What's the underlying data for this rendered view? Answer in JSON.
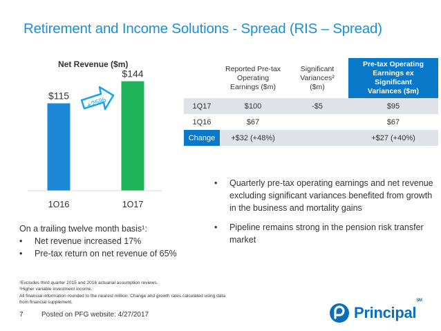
{
  "title": "Retirement and Income Solutions - Spread (RIS – Spread)",
  "chart_title": "Net Revenue ($m)",
  "chart_data": {
    "type": "bar",
    "title": "Net Revenue ($m)",
    "categories": [
      "1Q16",
      "1Q17"
    ],
    "values": [
      115,
      144
    ],
    "data_labels": [
      "$115",
      "$144"
    ],
    "colors": [
      "#1e88d8",
      "#1fb35a"
    ],
    "annotation": "+25%",
    "ylim": [
      0,
      160
    ]
  },
  "table": {
    "headers": [
      "",
      "Reported Pre-tax Operating Earnings ($m)",
      "Significant Variances² ($m)",
      "Pre-tax Operating Earnings ex Significant Variances ($m)"
    ],
    "rows": [
      [
        "1Q17",
        "$100",
        "-$5",
        "$95"
      ],
      [
        "1Q16",
        "$67",
        "",
        "$67"
      ],
      [
        "Change",
        "+$32 (+48%)",
        "",
        "+$27 (+40%)"
      ]
    ]
  },
  "trailing": {
    "intro": "On a trailing twelve month basis¹:",
    "items": [
      "Net revenue increased 17%",
      "Pre-tax return on net revenue of 65%"
    ]
  },
  "bullets": [
    "Quarterly pre-tax operating earnings and net revenue excluding significant variances benefited from growth in the business and mortality gains",
    "Pipeline remains strong in the pension risk transfer market"
  ],
  "footnotes": [
    "¹Excludes third quarter 2015 and 2016 actuarial assumption reviews.",
    "²Higher variable investment income.",
    "All financial information rounded to the nearest million. Change and growth rates calculated using data from financial supplement."
  ],
  "footer": {
    "page": "7",
    "posted": "Posted on PFG website: 4/27/2017"
  },
  "logo": {
    "name": "Principal",
    "tm": "SM"
  },
  "colors": {
    "accent": "#1a8fd6",
    "brand": "#0a6fb8",
    "bar_1q16": "#1e88d8",
    "bar_1q17": "#1fb35a",
    "arrow": "#1aa3e8"
  }
}
